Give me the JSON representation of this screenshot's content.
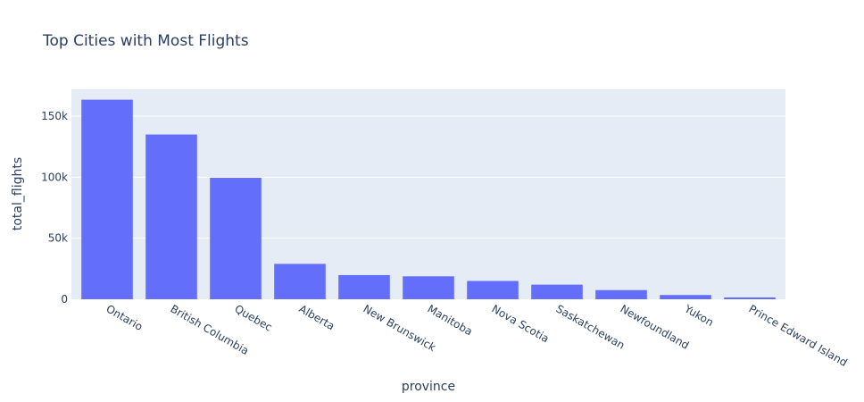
{
  "chart_data": {
    "type": "bar",
    "title": "Top Cities with Most Flights",
    "xlabel": "province",
    "ylabel": "total_flights",
    "categories": [
      "Ontario",
      "British Columbia",
      "Quebec",
      "Alberta",
      "New Brunswick",
      "Manitoba",
      "Nova Scotia",
      "Saskatchewan",
      "Newfoundland",
      "Yukon",
      "Prince Edward Island"
    ],
    "values": [
      163500,
      135000,
      99500,
      29000,
      19800,
      18800,
      15000,
      12000,
      7500,
      3500,
      1500
    ],
    "ylim": [
      0,
      172000
    ],
    "y_ticks": [
      {
        "value": 0,
        "label": "0"
      },
      {
        "value": 50000,
        "label": "50k"
      },
      {
        "value": 100000,
        "label": "100k"
      },
      {
        "value": 150000,
        "label": "150k"
      }
    ],
    "bar_color": "#636efa",
    "plot_bg": "#e5ecf6",
    "grid": true
  }
}
